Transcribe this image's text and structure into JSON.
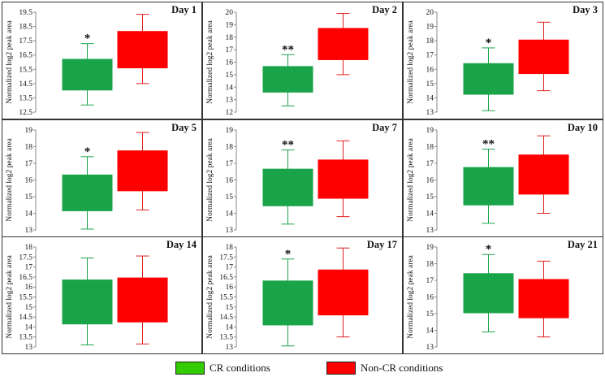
{
  "colors": {
    "cr": "#1aa44a",
    "noncr": "#ff0000",
    "whisker_cr": "#1aa44a",
    "whisker_noncr": "#e02020",
    "border": "#333333"
  },
  "ylabel": "Normalized log2 peak area",
  "legend": {
    "cr_label": "CR conditions",
    "noncr_label": "Non-CR conditions",
    "cr_swatch": "#33cc00",
    "noncr_swatch": "#ff0000"
  },
  "chart_data": [
    {
      "type": "box",
      "title": "Day 1",
      "ylabel": "Normalized log2 peak area",
      "ylim": [
        12.5,
        19.5
      ],
      "yticks": [
        12.5,
        13.5,
        14.5,
        15.5,
        16.5,
        17.5,
        18.5,
        19.5
      ],
      "ytick_labels": [
        "12.5",
        "13.5",
        "14.5",
        "15.5",
        "16.5",
        "17.5",
        "18.5",
        "19.5"
      ],
      "series": [
        {
          "name": "CR conditions",
          "min": 13.0,
          "q1": 14.05,
          "q3": 16.2,
          "max": 17.3
        },
        {
          "name": "Non-CR conditions",
          "min": 14.5,
          "q1": 15.6,
          "q3": 18.15,
          "max": 19.35
        }
      ],
      "annotation": "*"
    },
    {
      "type": "box",
      "title": "Day 2",
      "ylabel": "Normalized log2 peak area",
      "ylim": [
        12,
        20
      ],
      "yticks": [
        12,
        13,
        14,
        15,
        16,
        17,
        18,
        19,
        20
      ],
      "ytick_labels": [
        "12",
        "13",
        "14",
        "15",
        "16",
        "17",
        "18",
        "19",
        "20"
      ],
      "series": [
        {
          "name": "CR conditions",
          "min": 12.5,
          "q1": 13.6,
          "q3": 15.65,
          "max": 16.6
        },
        {
          "name": "Non-CR conditions",
          "min": 15.0,
          "q1": 16.2,
          "q3": 18.7,
          "max": 19.9
        }
      ],
      "annotation": "**"
    },
    {
      "type": "box",
      "title": "Day 3",
      "ylabel": "Normalized log2 peak area",
      "ylim": [
        13,
        20
      ],
      "yticks": [
        13,
        14,
        15,
        16,
        17,
        18,
        19,
        20
      ],
      "ytick_labels": [
        "13",
        "14",
        "15",
        "16",
        "17",
        "18",
        "19",
        "20"
      ],
      "series": [
        {
          "name": "CR conditions",
          "min": 13.1,
          "q1": 14.25,
          "q3": 16.4,
          "max": 17.5
        },
        {
          "name": "Non-CR conditions",
          "min": 14.5,
          "q1": 15.7,
          "q3": 18.05,
          "max": 19.3
        }
      ],
      "annotation": "*"
    },
    {
      "type": "box",
      "title": "Day 5",
      "ylabel": "Normalized log2 peak area",
      "ylim": [
        13,
        19
      ],
      "yticks": [
        13,
        14,
        15,
        16,
        17,
        18,
        19
      ],
      "ytick_labels": [
        "13",
        "14",
        "15",
        "16",
        "17",
        "18",
        "19"
      ],
      "series": [
        {
          "name": "CR conditions",
          "min": 13.05,
          "q1": 14.15,
          "q3": 16.3,
          "max": 17.4
        },
        {
          "name": "Non-CR conditions",
          "min": 14.2,
          "q1": 15.35,
          "q3": 17.75,
          "max": 18.85
        }
      ],
      "annotation": "*"
    },
    {
      "type": "box",
      "title": "Day 7",
      "ylabel": "Normalized log2 peak area",
      "ylim": [
        13,
        19
      ],
      "yticks": [
        13,
        14,
        15,
        16,
        17,
        18,
        19
      ],
      "ytick_labels": [
        "13",
        "14",
        "15",
        "16",
        "17",
        "18",
        "19"
      ],
      "series": [
        {
          "name": "CR conditions",
          "min": 13.35,
          "q1": 14.45,
          "q3": 16.65,
          "max": 17.8
        },
        {
          "name": "Non-CR conditions",
          "min": 13.8,
          "q1": 14.9,
          "q3": 17.2,
          "max": 18.35
        }
      ],
      "annotation": "**"
    },
    {
      "type": "box",
      "title": "Day 10",
      "ylabel": "Normalized log2 peak area",
      "ylim": [
        13,
        19
      ],
      "yticks": [
        13,
        14,
        15,
        16,
        17,
        18,
        19
      ],
      "ytick_labels": [
        "13",
        "14",
        "15",
        "16",
        "17",
        "18",
        "19"
      ],
      "series": [
        {
          "name": "CR conditions",
          "min": 13.4,
          "q1": 14.5,
          "q3": 16.75,
          "max": 17.85
        },
        {
          "name": "Non-CR conditions",
          "min": 14.0,
          "q1": 15.15,
          "q3": 17.5,
          "max": 18.65
        }
      ],
      "annotation": "**"
    },
    {
      "type": "box",
      "title": "Day 14",
      "ylabel": "Normalized log2 peak area",
      "ylim": [
        13,
        18
      ],
      "yticks": [
        13,
        13.5,
        14,
        14.5,
        15,
        15.5,
        16,
        16.5,
        17,
        17.5,
        18
      ],
      "ytick_labels": [
        "13",
        "13.5",
        "14",
        "14.5",
        "15",
        "15.5",
        "16",
        "16.5",
        "17",
        "17.5",
        "18"
      ],
      "series": [
        {
          "name": "CR conditions",
          "min": 13.1,
          "q1": 14.15,
          "q3": 16.35,
          "max": 17.45
        },
        {
          "name": "Non-CR conditions",
          "min": 13.15,
          "q1": 14.25,
          "q3": 16.45,
          "max": 17.55
        }
      ],
      "annotation": ""
    },
    {
      "type": "box",
      "title": "Day 17",
      "ylabel": "Normalized log2 peak area",
      "ylim": [
        13,
        18
      ],
      "yticks": [
        13,
        13.5,
        14,
        14.5,
        15,
        15.5,
        16,
        16.5,
        17,
        17.5,
        18
      ],
      "ytick_labels": [
        "13",
        "13.5",
        "14",
        "14.5",
        "15",
        "15.5",
        "16",
        "16.5",
        "17",
        "17.5",
        "18"
      ],
      "series": [
        {
          "name": "CR conditions",
          "min": 13.05,
          "q1": 14.1,
          "q3": 16.3,
          "max": 17.4
        },
        {
          "name": "Non-CR conditions",
          "min": 13.5,
          "q1": 14.6,
          "q3": 16.85,
          "max": 17.95
        }
      ],
      "annotation": "*"
    },
    {
      "type": "box",
      "title": "Day 21",
      "ylabel": "Normalized log2 peak area",
      "ylim": [
        13,
        19
      ],
      "yticks": [
        13,
        14,
        15,
        16,
        17,
        18,
        19
      ],
      "ytick_labels": [
        "13",
        "14",
        "15",
        "16",
        "17",
        "18",
        "19"
      ],
      "series": [
        {
          "name": "CR conditions",
          "min": 13.9,
          "q1": 15.05,
          "q3": 17.4,
          "max": 18.55
        },
        {
          "name": "Non-CR conditions",
          "min": 13.6,
          "q1": 14.75,
          "q3": 17.05,
          "max": 18.15
        }
      ],
      "annotation": "*"
    }
  ]
}
